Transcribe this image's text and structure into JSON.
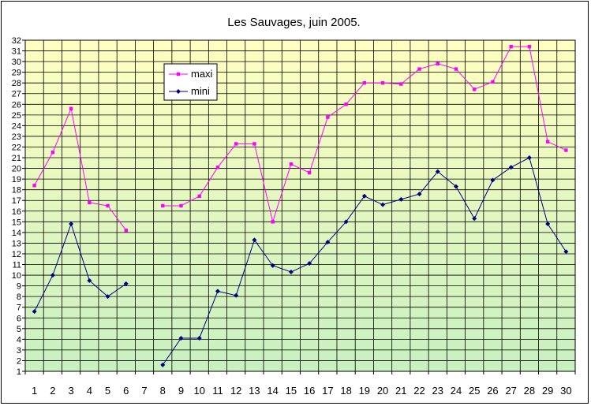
{
  "chart_data": {
    "type": "line",
    "title": "Les Sauvages, juin 2005.",
    "xlabel": "",
    "ylabel": "",
    "categories": [
      "1",
      "2",
      "3",
      "4",
      "5",
      "6",
      "7",
      "8",
      "9",
      "10",
      "11",
      "12",
      "13",
      "14",
      "15",
      "16",
      "17",
      "18",
      "19",
      "20",
      "21",
      "22",
      "23",
      "24",
      "25",
      "26",
      "27",
      "28",
      "29",
      "30"
    ],
    "ylim": [
      1,
      32
    ],
    "yticks": [
      1,
      2,
      3,
      4,
      5,
      6,
      7,
      8,
      9,
      10,
      11,
      12,
      13,
      14,
      15,
      16,
      17,
      18,
      19,
      20,
      21,
      22,
      23,
      24,
      25,
      26,
      27,
      28,
      29,
      30,
      31,
      32
    ],
    "grid": true,
    "legend_position": "top-left",
    "background_gradient": [
      "#ffffc0",
      "#c8f0c0"
    ],
    "series": [
      {
        "name": "maxi",
        "color": "#ff00ff",
        "marker": "square",
        "values": [
          18.4,
          21.5,
          25.6,
          16.8,
          16.5,
          14.2,
          null,
          16.5,
          16.5,
          17.4,
          20.1,
          22.3,
          22.3,
          15.0,
          20.4,
          19.6,
          24.8,
          26.0,
          28.0,
          28.0,
          27.9,
          29.3,
          29.8,
          29.3,
          27.4,
          28.1,
          31.4,
          31.4,
          22.5,
          21.7
        ]
      },
      {
        "name": "mini",
        "color": "#000080",
        "marker": "diamond",
        "values": [
          6.6,
          10.0,
          14.8,
          9.5,
          8.0,
          9.2,
          null,
          1.6,
          4.1,
          4.1,
          8.5,
          8.1,
          13.3,
          10.9,
          10.3,
          11.1,
          13.1,
          15.0,
          17.4,
          16.6,
          17.1,
          17.6,
          19.7,
          18.3,
          15.3,
          18.9,
          20.1,
          21.0,
          14.8,
          12.2
        ]
      }
    ]
  }
}
